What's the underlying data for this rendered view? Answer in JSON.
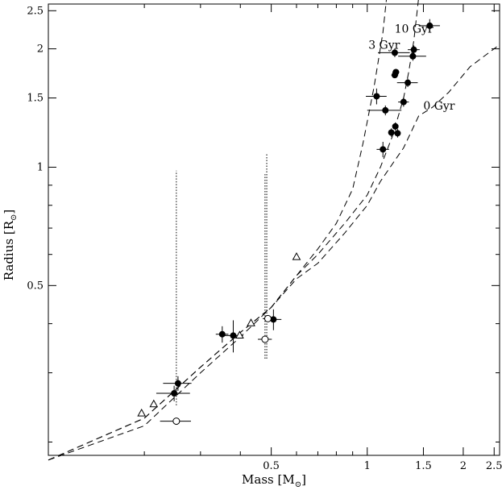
{
  "chart_data": {
    "type": "scatter",
    "title": "",
    "xlabel": {
      "text": "Mass [M",
      "sub": "⊙",
      "end": "]"
    },
    "ylabel": {
      "text": "Radius [R",
      "sub": "⊙",
      "end": "]"
    },
    "x_scale": "log",
    "y_scale": "log",
    "xlim": [
      0.1,
      2.6
    ],
    "ylim": [
      0.185,
      2.6
    ],
    "x_tick_labels": [
      {
        "value": 0.5,
        "label": "0.5"
      },
      {
        "value": 1,
        "label": "1"
      },
      {
        "value": 1.5,
        "label": "1.5"
      },
      {
        "value": 2,
        "label": "2"
      },
      {
        "value": 2.5,
        "label": "2.5"
      }
    ],
    "y_tick_labels": [
      {
        "value": 0.5,
        "label": "0.5"
      },
      {
        "value": 1,
        "label": "1"
      },
      {
        "value": 1.5,
        "label": "1.5"
      },
      {
        "value": 2,
        "label": "2"
      },
      {
        "value": 2.5,
        "label": "2.5"
      }
    ],
    "isochrones": [
      {
        "label": "10 Gyr",
        "label_at": [
          1.4,
          2.2
        ],
        "points": [
          [
            0.1,
            0.18
          ],
          [
            0.2,
            0.23
          ],
          [
            0.3,
            0.31
          ],
          [
            0.4,
            0.38
          ],
          [
            0.5,
            0.44
          ],
          [
            0.6,
            0.53
          ],
          [
            0.7,
            0.62
          ],
          [
            0.8,
            0.72
          ],
          [
            0.9,
            0.88
          ],
          [
            0.97,
            1.15
          ],
          [
            1.05,
            1.6
          ],
          [
            1.12,
            2.2
          ],
          [
            1.15,
            2.7
          ]
        ]
      },
      {
        "label": "3 Gyr",
        "label_at": [
          1.13,
          2.0
        ],
        "points": [
          [
            0.1,
            0.18
          ],
          [
            0.2,
            0.23
          ],
          [
            0.3,
            0.31
          ],
          [
            0.4,
            0.38
          ],
          [
            0.5,
            0.44
          ],
          [
            0.6,
            0.53
          ],
          [
            0.7,
            0.6
          ],
          [
            0.85,
            0.72
          ],
          [
            1.0,
            0.85
          ],
          [
            1.1,
            1.0
          ],
          [
            1.2,
            1.2
          ],
          [
            1.3,
            1.5
          ],
          [
            1.35,
            1.75
          ],
          [
            1.4,
            2.1
          ],
          [
            1.45,
            2.7
          ]
        ]
      },
      {
        "label": "0 Gyr",
        "label_at": [
          1.68,
          1.4
        ],
        "points": [
          [
            0.1,
            0.18
          ],
          [
            0.2,
            0.22
          ],
          [
            0.3,
            0.3
          ],
          [
            0.4,
            0.37
          ],
          [
            0.5,
            0.44
          ],
          [
            0.6,
            0.52
          ],
          [
            0.7,
            0.57
          ],
          [
            0.85,
            0.68
          ],
          [
            1.0,
            0.8
          ],
          [
            1.1,
            0.92
          ],
          [
            1.2,
            1.02
          ],
          [
            1.3,
            1.12
          ],
          [
            1.45,
            1.35
          ],
          [
            1.6,
            1.42
          ],
          [
            1.8,
            1.55
          ],
          [
            2.1,
            1.8
          ],
          [
            2.6,
            2.05
          ]
        ]
      }
    ],
    "dotted_lines": [
      [
        [
          0.252,
          0.248
        ],
        [
          0.252,
          0.98
        ]
      ],
      [
        [
          0.478,
          0.326
        ],
        [
          0.478,
          0.96
        ]
      ],
      [
        [
          0.484,
          0.326
        ],
        [
          0.484,
          1.08
        ]
      ]
    ],
    "series": [
      {
        "marker": "filled-circle",
        "points": [
          {
            "x": 0.255,
            "y": 0.282,
            "xerr": 0.026,
            "yerr": 0.012
          },
          {
            "x": 0.248,
            "y": 0.266,
            "xerr": 0.03,
            "yerr": 0.012
          },
          {
            "x": 0.351,
            "y": 0.376,
            "xerr": 0.016,
            "yerr": 0.018
          },
          {
            "x": 0.38,
            "y": 0.373,
            "xerr": 0.028,
            "yerr": 0.035
          },
          {
            "x": 0.508,
            "y": 0.41,
            "xerr": 0.03,
            "yerr": 0.025
          },
          {
            "x": 1.57,
            "y": 2.29,
            "xerr": 0.12,
            "yerr": 0.09
          },
          {
            "x": 1.4,
            "y": 1.99,
            "xerr": 0.06,
            "yerr": 0.05
          },
          {
            "x": 1.22,
            "y": 1.955,
            "xerr": 0.14,
            "yerr": 0.05
          },
          {
            "x": 1.39,
            "y": 1.915,
            "xerr": 0.14,
            "yerr": 0.05
          },
          {
            "x": 1.23,
            "y": 1.745,
            "xerr": 0.03,
            "yerr": 0.03
          },
          {
            "x": 1.22,
            "y": 1.715,
            "xerr": 0.03,
            "yerr": 0.03
          },
          {
            "x": 1.34,
            "y": 1.64,
            "xerr": 0.1,
            "yerr": 0.04
          },
          {
            "x": 1.07,
            "y": 1.515,
            "xerr": 0.08,
            "yerr": 0.07
          },
          {
            "x": 1.3,
            "y": 1.465,
            "xerr": 0.05,
            "yerr": 0.04
          },
          {
            "x": 1.14,
            "y": 1.395,
            "xerr": 0.14,
            "yerr": 0.04
          },
          {
            "x": 1.225,
            "y": 1.27,
            "xerr": 0.025,
            "yerr": 0.03
          },
          {
            "x": 1.19,
            "y": 1.225,
            "xerr": 0.025,
            "yerr": 0.03
          },
          {
            "x": 1.245,
            "y": 1.22,
            "xerr": 0.025,
            "yerr": 0.03
          },
          {
            "x": 1.12,
            "y": 1.11,
            "xerr": 0.05,
            "yerr": 0.05
          }
        ]
      },
      {
        "marker": "open-circle",
        "points": [
          {
            "x": 0.252,
            "y": 0.226,
            "xerr": 0.028,
            "yerr": 0.0
          },
          {
            "x": 0.478,
            "y": 0.365,
            "xerr": 0.024,
            "yerr": 0.0
          },
          {
            "x": 0.488,
            "y": 0.412,
            "xerr": 0.018,
            "yerr": 0.0
          }
        ]
      },
      {
        "marker": "open-triangle",
        "points": [
          {
            "x": 0.196,
            "y": 0.237
          },
          {
            "x": 0.214,
            "y": 0.25
          },
          {
            "x": 0.398,
            "y": 0.374
          },
          {
            "x": 0.432,
            "y": 0.402
          },
          {
            "x": 0.6,
            "y": 0.592
          }
        ]
      }
    ]
  }
}
